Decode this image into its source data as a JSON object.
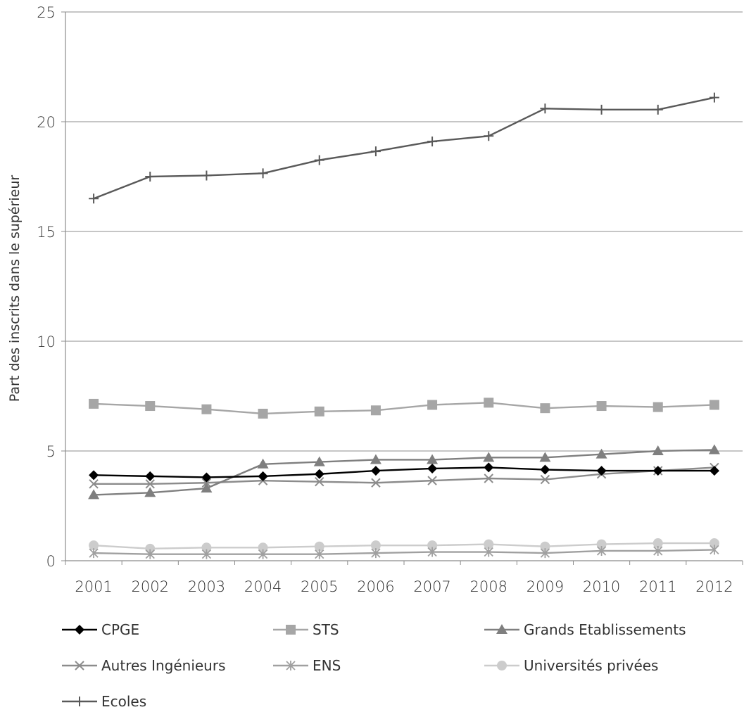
{
  "chart_data": {
    "type": "line",
    "title": "",
    "xlabel": "",
    "ylabel": "Part des inscrits dans le supérieur",
    "x": [
      "2001",
      "2002",
      "2003",
      "2004",
      "2005",
      "2006",
      "2007",
      "2008",
      "2009",
      "2010",
      "2011",
      "2012"
    ],
    "y_ticks": [
      "0",
      "5",
      "10",
      "15",
      "20",
      "25"
    ],
    "ylim": [
      0,
      25
    ],
    "grid": true,
    "legend_position": "bottom",
    "series": [
      {
        "name": "CPGE",
        "marker": "diamond",
        "color": "#000000",
        "values": [
          3.9,
          3.85,
          3.8,
          3.85,
          3.95,
          4.1,
          4.2,
          4.25,
          4.15,
          4.1,
          4.1,
          4.1
        ]
      },
      {
        "name": "STS",
        "marker": "square",
        "color": "#a6a6a6",
        "values": [
          7.15,
          7.05,
          6.9,
          6.7,
          6.8,
          6.85,
          7.1,
          7.2,
          6.95,
          7.05,
          7.0,
          7.1
        ]
      },
      {
        "name": "Grands Etablissements",
        "marker": "triangle",
        "color": "#7f7f7f",
        "values": [
          3.0,
          3.1,
          3.3,
          4.4,
          4.5,
          4.6,
          4.6,
          4.7,
          4.7,
          4.85,
          5.0,
          5.05
        ]
      },
      {
        "name": "Autres Ingénieurs",
        "marker": "x",
        "color": "#8c8c8c",
        "values": [
          3.5,
          3.5,
          3.55,
          3.65,
          3.6,
          3.55,
          3.65,
          3.75,
          3.7,
          3.95,
          4.1,
          4.25
        ]
      },
      {
        "name": "ENS",
        "marker": "asterisk",
        "color": "#a0a0a0",
        "values": [
          0.35,
          0.3,
          0.3,
          0.3,
          0.3,
          0.35,
          0.4,
          0.4,
          0.35,
          0.45,
          0.45,
          0.5
        ]
      },
      {
        "name": "Universités privées",
        "marker": "circle",
        "color": "#cccccc",
        "values": [
          0.7,
          0.55,
          0.6,
          0.6,
          0.65,
          0.7,
          0.7,
          0.75,
          0.65,
          0.75,
          0.8,
          0.8
        ]
      },
      {
        "name": "Ecoles",
        "marker": "plus",
        "color": "#595959",
        "values": [
          16.5,
          17.5,
          17.55,
          17.65,
          18.25,
          18.65,
          19.1,
          19.35,
          20.6,
          20.55,
          20.55,
          21.1
        ]
      }
    ]
  }
}
